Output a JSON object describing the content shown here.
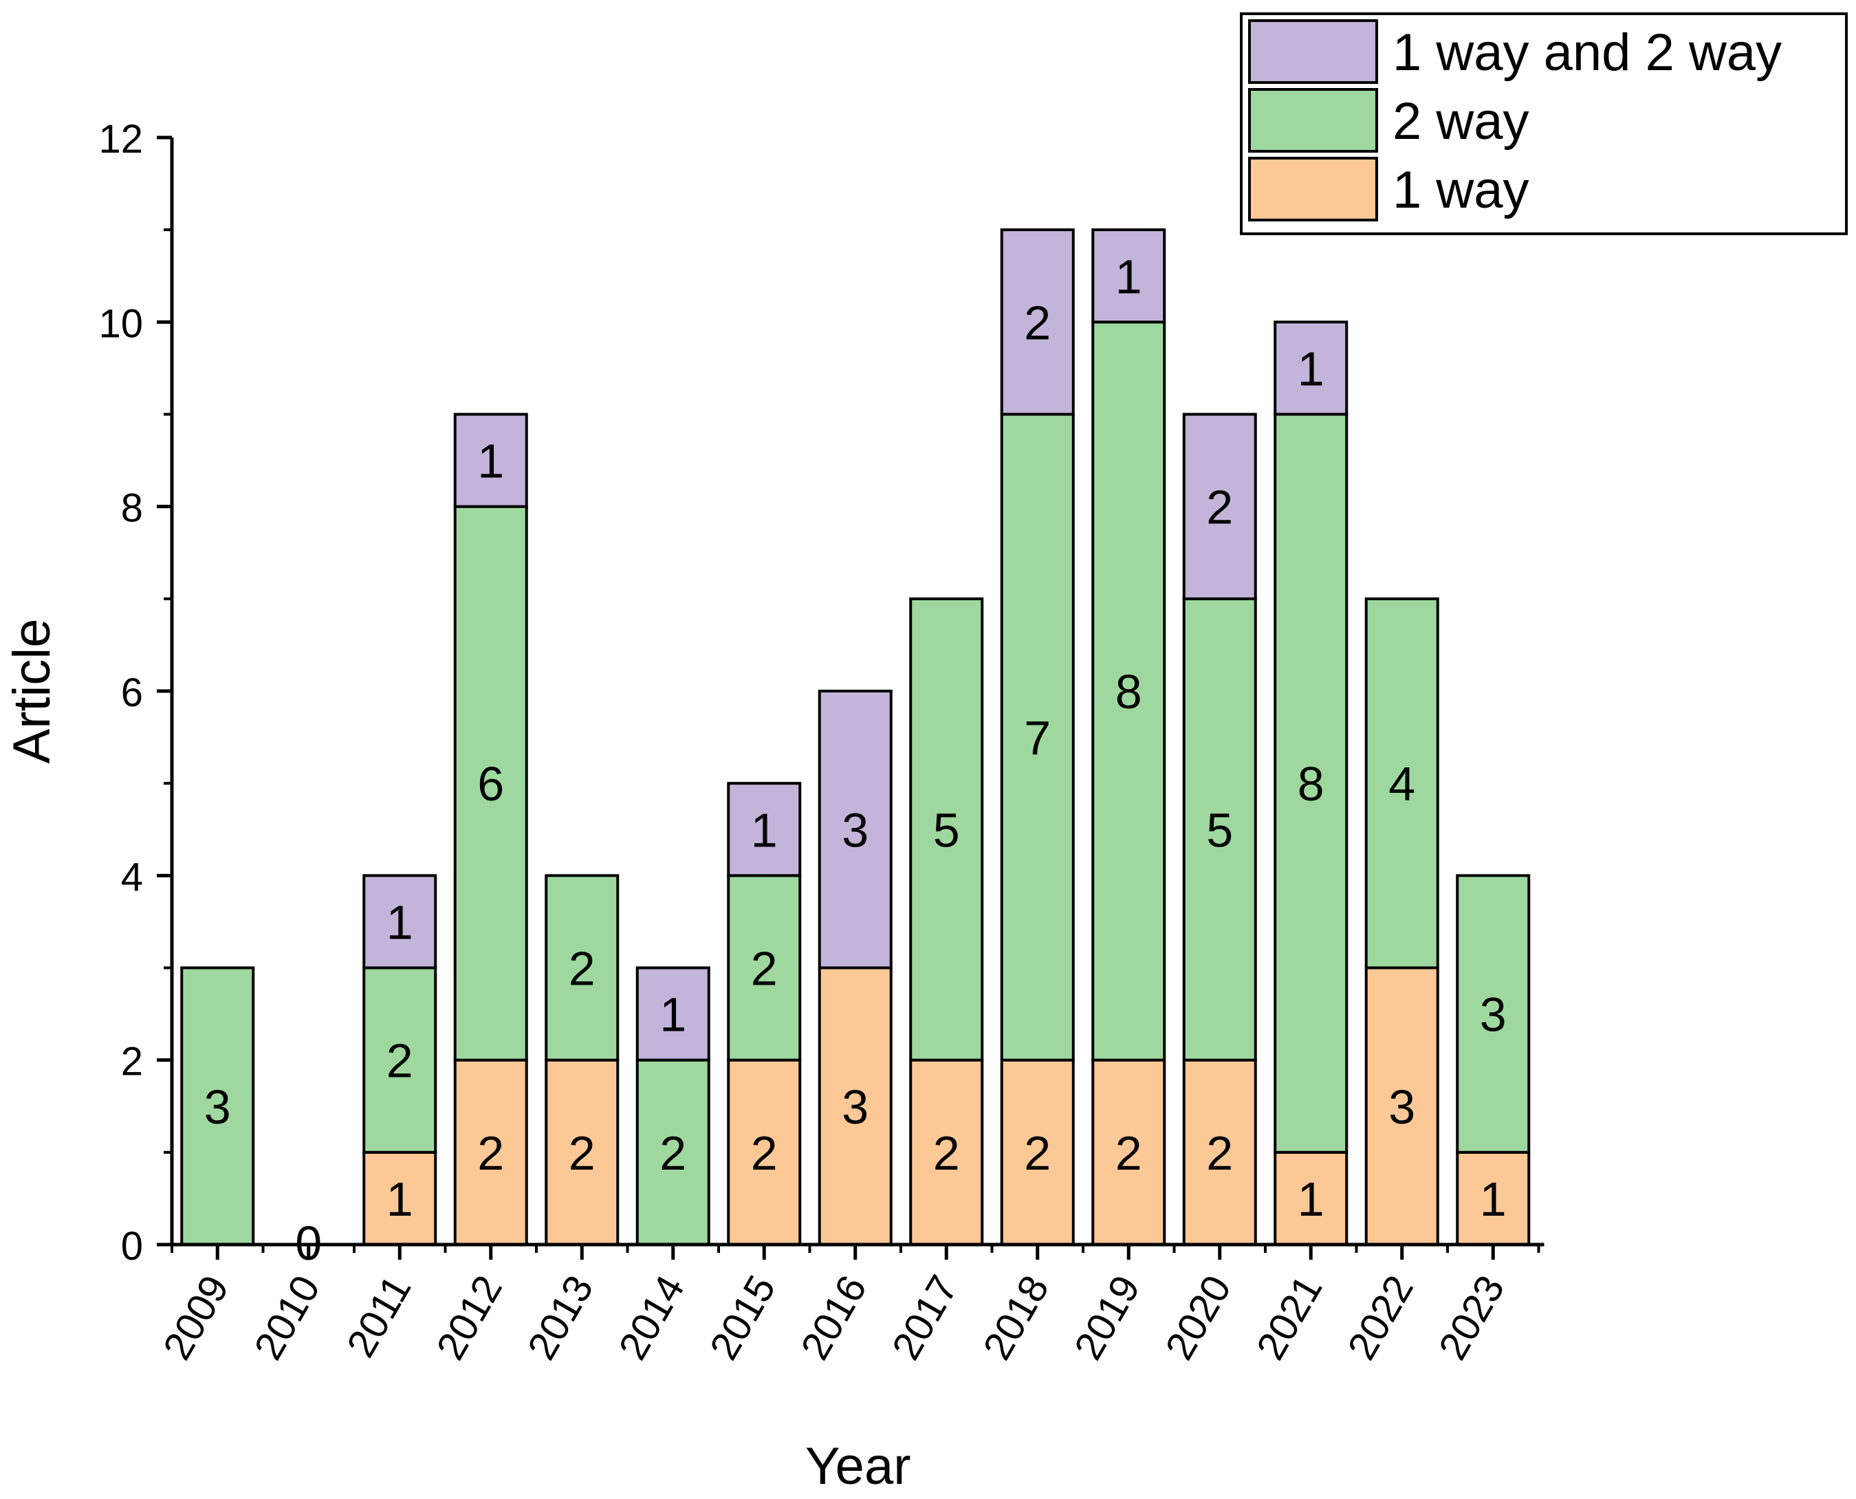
{
  "chart_data": {
    "type": "bar",
    "stacked": true,
    "xlabel": "Year",
    "ylabel": "Article",
    "ylim": [
      0,
      12
    ],
    "yticks": [
      0,
      2,
      4,
      6,
      8,
      10,
      12
    ],
    "grid": false,
    "legend_position": "top-right",
    "categories": [
      "2009",
      "2010",
      "2011",
      "2012",
      "2013",
      "2014",
      "2015",
      "2016",
      "2017",
      "2018",
      "2019",
      "2020",
      "2021",
      "2022",
      "2023"
    ],
    "series": [
      {
        "name": "1 way",
        "color": "#FCC896",
        "values": [
          0,
          0,
          1,
          2,
          2,
          0,
          2,
          3,
          2,
          2,
          2,
          2,
          1,
          3,
          1
        ]
      },
      {
        "name": "2 way",
        "color": "#9ED89E",
        "values": [
          3,
          0,
          2,
          6,
          2,
          2,
          2,
          0,
          5,
          7,
          8,
          5,
          8,
          4,
          3
        ]
      },
      {
        "name": "1 way and 2 way",
        "color": "#C3B4DA",
        "values": [
          0,
          0,
          1,
          1,
          0,
          1,
          1,
          3,
          0,
          2,
          1,
          2,
          1,
          0,
          0
        ]
      }
    ],
    "legend_order": [
      "1 way and 2 way",
      "2 way",
      "1 way"
    ],
    "zero_labels": [
      {
        "category": "2010",
        "text": "0"
      }
    ]
  }
}
